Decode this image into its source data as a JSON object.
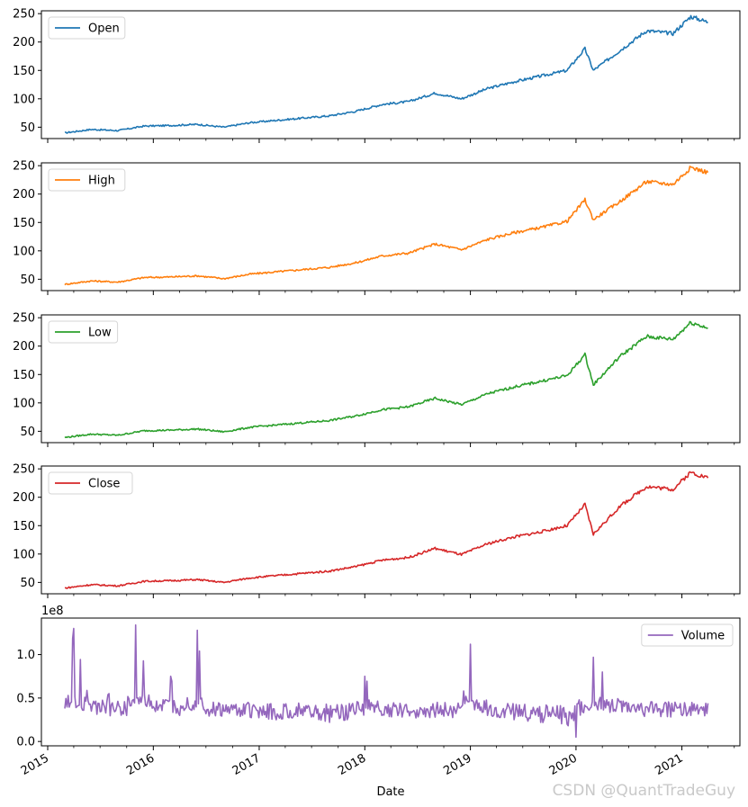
{
  "watermark": "CSDN @QuantTradeGuy",
  "chart_data": [
    {
      "type": "line",
      "legend": "upper left",
      "series": [
        {
          "name": "Open",
          "color": "#1f77b4"
        }
      ],
      "yticks": [
        50,
        100,
        150,
        200,
        250
      ],
      "ylim": [
        30,
        255
      ],
      "x": [
        "2015-03",
        "2015-06",
        "2015-09",
        "2015-12",
        "2016-03",
        "2016-06",
        "2016-09",
        "2016-12",
        "2017-03",
        "2017-06",
        "2017-09",
        "2017-12",
        "2018-03",
        "2018-06",
        "2018-09",
        "2018-12",
        "2019-03",
        "2019-06",
        "2019-09",
        "2019-12",
        "2020-02",
        "2020-03",
        "2020-06",
        "2020-09",
        "2020-12",
        "2021-02",
        "2021-04"
      ],
      "values": [
        40,
        46,
        44,
        52,
        53,
        55,
        50,
        58,
        62,
        66,
        70,
        78,
        90,
        95,
        110,
        100,
        118,
        130,
        140,
        150,
        188,
        150,
        185,
        220,
        215,
        245,
        235
      ]
    },
    {
      "type": "line",
      "legend": "upper left",
      "series": [
        {
          "name": "High",
          "color": "#ff7f0e"
        }
      ],
      "yticks": [
        50,
        100,
        150,
        200,
        250
      ],
      "ylim": [
        30,
        255
      ],
      "x": [
        "2015-03",
        "2015-06",
        "2015-09",
        "2015-12",
        "2016-03",
        "2016-06",
        "2016-09",
        "2016-12",
        "2017-03",
        "2017-06",
        "2017-09",
        "2017-12",
        "2018-03",
        "2018-06",
        "2018-09",
        "2018-12",
        "2019-03",
        "2019-06",
        "2019-09",
        "2019-12",
        "2020-02",
        "2020-03",
        "2020-06",
        "2020-09",
        "2020-12",
        "2021-02",
        "2021-04"
      ],
      "values": [
        41,
        47,
        45,
        53,
        54,
        56,
        51,
        59,
        63,
        67,
        71,
        79,
        91,
        96,
        112,
        102,
        120,
        132,
        141,
        152,
        190,
        155,
        187,
        222,
        217,
        247,
        238
      ]
    },
    {
      "type": "line",
      "legend": "upper left",
      "series": [
        {
          "name": "Low",
          "color": "#2ca02c"
        }
      ],
      "yticks": [
        50,
        100,
        150,
        200,
        250
      ],
      "ylim": [
        30,
        255
      ],
      "x": [
        "2015-03",
        "2015-06",
        "2015-09",
        "2015-12",
        "2016-03",
        "2016-06",
        "2016-09",
        "2016-12",
        "2017-03",
        "2017-06",
        "2017-09",
        "2017-12",
        "2018-03",
        "2018-06",
        "2018-09",
        "2018-12",
        "2019-03",
        "2019-06",
        "2019-09",
        "2019-12",
        "2020-02",
        "2020-03",
        "2020-06",
        "2020-09",
        "2020-12",
        "2021-02",
        "2021-04"
      ],
      "values": [
        39,
        45,
        43,
        51,
        52,
        54,
        49,
        57,
        61,
        65,
        69,
        77,
        88,
        93,
        108,
        97,
        116,
        128,
        138,
        148,
        185,
        132,
        182,
        217,
        212,
        242,
        232
      ]
    },
    {
      "type": "line",
      "legend": "upper left",
      "series": [
        {
          "name": "Close",
          "color": "#d62728"
        }
      ],
      "yticks": [
        50,
        100,
        150,
        200,
        250
      ],
      "ylim": [
        30,
        255
      ],
      "x": [
        "2015-03",
        "2015-06",
        "2015-09",
        "2015-12",
        "2016-03",
        "2016-06",
        "2016-09",
        "2016-12",
        "2017-03",
        "2017-06",
        "2017-09",
        "2017-12",
        "2018-03",
        "2018-06",
        "2018-09",
        "2018-12",
        "2019-03",
        "2019-06",
        "2019-09",
        "2019-12",
        "2020-02",
        "2020-03",
        "2020-06",
        "2020-09",
        "2020-12",
        "2021-02",
        "2021-04"
      ],
      "values": [
        40,
        46,
        44,
        52,
        53,
        55,
        50,
        58,
        62,
        66,
        70,
        78,
        89,
        94,
        110,
        99,
        118,
        130,
        139,
        150,
        187,
        135,
        184,
        219,
        214,
        244,
        234
      ]
    },
    {
      "type": "line",
      "legend": "upper right",
      "offset_label": "1e8",
      "series": [
        {
          "name": "Volume",
          "color": "#9467bd"
        }
      ],
      "yticks": [
        0.0,
        0.5,
        1.0
      ],
      "ylim": [
        -0.05,
        1.42
      ],
      "xticks": [
        "2015",
        "2016",
        "2017",
        "2018",
        "2019",
        "2020",
        "2021"
      ],
      "xlabel": "Date",
      "x": [
        "2015-03",
        "2015-04",
        "2015-06",
        "2015-08",
        "2015-10",
        "2015-11",
        "2016-01",
        "2016-03",
        "2016-04",
        "2016-06",
        "2016-07",
        "2016-09",
        "2016-12",
        "2017-03",
        "2017-06",
        "2017-09",
        "2017-11",
        "2018-01",
        "2018-03",
        "2018-06",
        "2018-09",
        "2018-12",
        "2019-01",
        "2019-03",
        "2019-06",
        "2019-09",
        "2019-12",
        "2020-01",
        "2020-03",
        "2020-04",
        "2020-06",
        "2020-09",
        "2020-12",
        "2021-02",
        "2021-04"
      ],
      "values": [
        0.38,
        1.3,
        0.35,
        0.55,
        0.3,
        1.34,
        0.4,
        0.75,
        0.3,
        1.28,
        0.32,
        0.35,
        0.28,
        0.25,
        0.3,
        0.22,
        0.25,
        0.75,
        0.3,
        0.35,
        0.28,
        0.4,
        1.12,
        0.3,
        0.25,
        0.22,
        0.2,
        0.05,
        0.97,
        0.8,
        0.45,
        0.4,
        0.35,
        0.3,
        0.44
      ]
    }
  ]
}
